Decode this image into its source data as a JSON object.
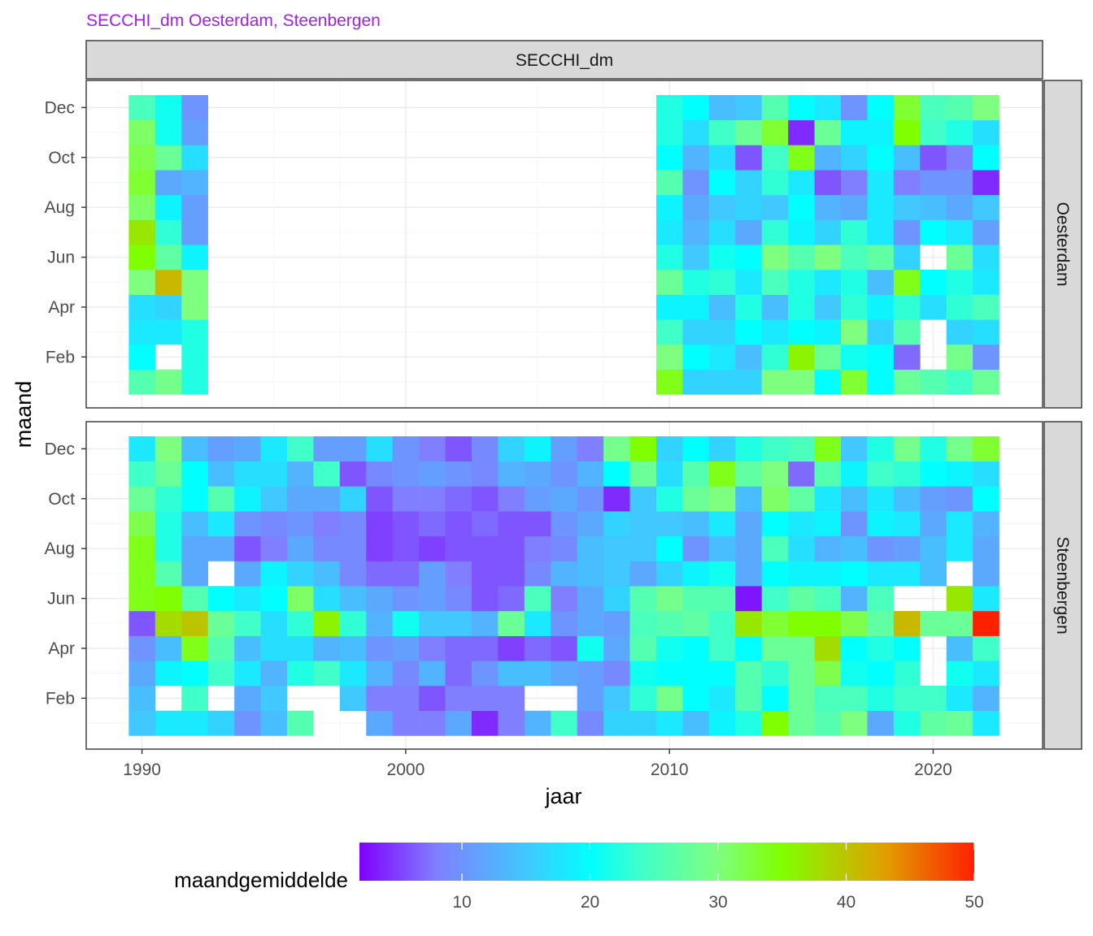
{
  "chart_data": {
    "type": "heatmap",
    "title": "",
    "subtitle": "SECCHI_dm Oesterdam, Steenbergen",
    "column_strip": "SECCHI_dm",
    "xlabel": "jaar",
    "ylabel": "maand",
    "x_ticks": [
      1990,
      2000,
      2010,
      2020
    ],
    "y_ticks": [
      "Feb",
      "Apr",
      "Jun",
      "Aug",
      "Oct",
      "Dec"
    ],
    "legend": {
      "title": "maandgemiddelde",
      "position": "bottom",
      "ticks": [
        10,
        20,
        30,
        40,
        50
      ],
      "range": [
        2,
        50
      ],
      "colors": [
        "#7f00ff",
        "#7f7fff",
        "#40c8ff",
        "#00ffff",
        "#40ffc8",
        "#7fff7f",
        "#80ff00",
        "#e0a000",
        "#ff2000"
      ],
      "stops": [
        2,
        8,
        15,
        20,
        24,
        30,
        35,
        43,
        50
      ]
    },
    "facets": [
      {
        "name": "Oesterdam",
        "rows": {
          "1990": [
            26,
            20,
            18,
            17,
            30,
            35,
            37,
            31,
            33,
            32,
            31,
            25
          ],
          "1991": [
            29,
            null,
            18,
            16,
            41,
            27,
            23,
            19,
            12,
            28,
            21,
            21
          ],
          "1992": [
            22,
            22,
            22,
            30,
            30,
            19,
            11,
            11,
            13,
            17,
            11,
            10
          ],
          "2010": [
            34,
            30,
            24,
            19,
            28,
            22,
            18,
            19,
            26,
            20,
            22,
            22
          ],
          "2011": [
            16,
            20,
            16,
            19,
            22,
            15,
            13,
            12,
            10,
            13,
            17,
            20
          ],
          "2012": [
            16,
            18,
            16,
            14,
            23,
            21,
            17,
            15,
            20,
            17,
            24,
            14
          ],
          "2013": [
            16,
            14,
            20,
            22,
            18,
            20,
            12,
            16,
            16,
            6,
            28,
            15
          ],
          "2014": [
            30,
            23,
            18,
            14,
            25,
            30,
            23,
            15,
            23,
            24,
            33,
            26
          ],
          "2015": [
            30,
            36,
            20,
            22,
            22,
            26,
            19,
            20,
            18,
            34,
            4,
            20
          ],
          "2016": [
            20,
            28,
            19,
            15,
            18,
            30,
            16,
            13,
            6,
            13,
            28,
            18
          ],
          "2017": [
            33,
            21,
            30,
            23,
            22,
            25,
            23,
            12,
            8,
            16,
            19,
            10
          ],
          "2018": [
            20,
            20,
            16,
            19,
            14,
            27,
            18,
            18,
            18,
            20,
            19,
            20
          ],
          "2019": [
            28,
            7,
            26,
            23,
            34,
            16,
            10,
            15,
            8,
            14,
            35,
            33
          ],
          "2020": [
            26,
            null,
            null,
            17,
            20,
            null,
            20,
            14,
            10,
            6,
            24,
            25
          ],
          "2021": [
            24,
            29,
            16,
            23,
            22,
            28,
            18,
            12,
            10,
            8,
            22,
            26
          ],
          "2022": [
            28,
            10,
            17,
            25,
            18,
            17,
            11,
            15,
            4,
            20,
            17,
            30
          ]
        }
      },
      {
        "name": "Steenbergen",
        "rows": {
          "1990": [
            15,
            14,
            12,
            10,
            6,
            34,
            34,
            34,
            32,
            28,
            24,
            18
          ],
          "1991": [
            18,
            null,
            19,
            14,
            38,
            35,
            26,
            22,
            22,
            23,
            28,
            30
          ],
          "1992": [
            18,
            24,
            20,
            34,
            40,
            26,
            12,
            12,
            14,
            20,
            20,
            14
          ],
          "1993": [
            16,
            null,
            24,
            26,
            28,
            20,
            null,
            12,
            18,
            26,
            14,
            11
          ],
          "1994": [
            10,
            12,
            18,
            14,
            24,
            18,
            12,
            6,
            10,
            19,
            17,
            12
          ],
          "1995": [
            14,
            15,
            13,
            17,
            17,
            20,
            19,
            8,
            9,
            15,
            17,
            18
          ],
          "1996": [
            26,
            null,
            22,
            17,
            23,
            31,
            16,
            12,
            10,
            12,
            13,
            24
          ],
          "1997": [
            null,
            null,
            24,
            13,
            36,
            17,
            14,
            9,
            8,
            12,
            24,
            11
          ],
          "1998": [
            null,
            15,
            18,
            14,
            23,
            14,
            9,
            9,
            9,
            16,
            6,
            11
          ],
          "1999": [
            12,
            8,
            13,
            10,
            13,
            12,
            7,
            5,
            5,
            6,
            9,
            17
          ],
          "2000": [
            8,
            8,
            9,
            11,
            21,
            10,
            7,
            6,
            6,
            8,
            10,
            10
          ],
          "2001": [
            8,
            6,
            13,
            8,
            15,
            11,
            11,
            5,
            7,
            8,
            11,
            8
          ],
          "2002": [
            12,
            8,
            7,
            7,
            15,
            9,
            8,
            6,
            6,
            7,
            10,
            6
          ],
          "2003": [
            4,
            8,
            10,
            7,
            13,
            6,
            6,
            6,
            7,
            6,
            9,
            9
          ],
          "2004": [
            8,
            8,
            14,
            5,
            28,
            7,
            6,
            6,
            6,
            8,
            13,
            16
          ],
          "2005": [
            13,
            null,
            14,
            7,
            18,
            25,
            9,
            8,
            6,
            11,
            12,
            19
          ],
          "2006": [
            24,
            null,
            12,
            6,
            10,
            8,
            13,
            9,
            10,
            12,
            10,
            11
          ],
          "2007": [
            9,
            11,
            11,
            21,
            12,
            12,
            14,
            14,
            12,
            10,
            13,
            8
          ],
          "2008": [
            16,
            15,
            9,
            12,
            11,
            16,
            15,
            15,
            16,
            4,
            20,
            29
          ],
          "2009": [
            16,
            23,
            21,
            26,
            25,
            26,
            12,
            15,
            15,
            15,
            28,
            35
          ],
          "2010": [
            18,
            29,
            20,
            21,
            26,
            29,
            16,
            20,
            15,
            22,
            17,
            16
          ],
          "2011": [
            14,
            20,
            20,
            20,
            27,
            26,
            19,
            10,
            14,
            28,
            26,
            20
          ],
          "2012": [
            19,
            18,
            20,
            24,
            24,
            26,
            21,
            14,
            18,
            30,
            34,
            16
          ],
          "2013": [
            22,
            26,
            26,
            20,
            37,
            3,
            12,
            12,
            12,
            14,
            27,
            22
          ],
          "2014": [
            35,
            20,
            23,
            28,
            33,
            24,
            20,
            25,
            20,
            31,
            30,
            24
          ],
          "2015": [
            28,
            28,
            28,
            28,
            35,
            27,
            19,
            17,
            18,
            27,
            7,
            25
          ],
          "2016": [
            26,
            25,
            32,
            38,
            35,
            25,
            19,
            13,
            19,
            18,
            26,
            34
          ],
          "2017": [
            30,
            25,
            21,
            20,
            32,
            13,
            20,
            14,
            10,
            14,
            19,
            15
          ],
          "2018": [
            12,
            22,
            20,
            22,
            27,
            25,
            18,
            10,
            19,
            18,
            24,
            22
          ],
          "2019": [
            22,
            24,
            23,
            20,
            41,
            null,
            18,
            11,
            18,
            14,
            23,
            29
          ],
          "2020": [
            27,
            24,
            null,
            null,
            28,
            null,
            14,
            14,
            12,
            11,
            20,
            22
          ],
          "2021": [
            28,
            18,
            21,
            14,
            28,
            37,
            null,
            18,
            18,
            10,
            19,
            29
          ],
          "2022": [
            18,
            13,
            18,
            24,
            50,
            18,
            12,
            12,
            13,
            20,
            17,
            33
          ]
        }
      }
    ]
  }
}
